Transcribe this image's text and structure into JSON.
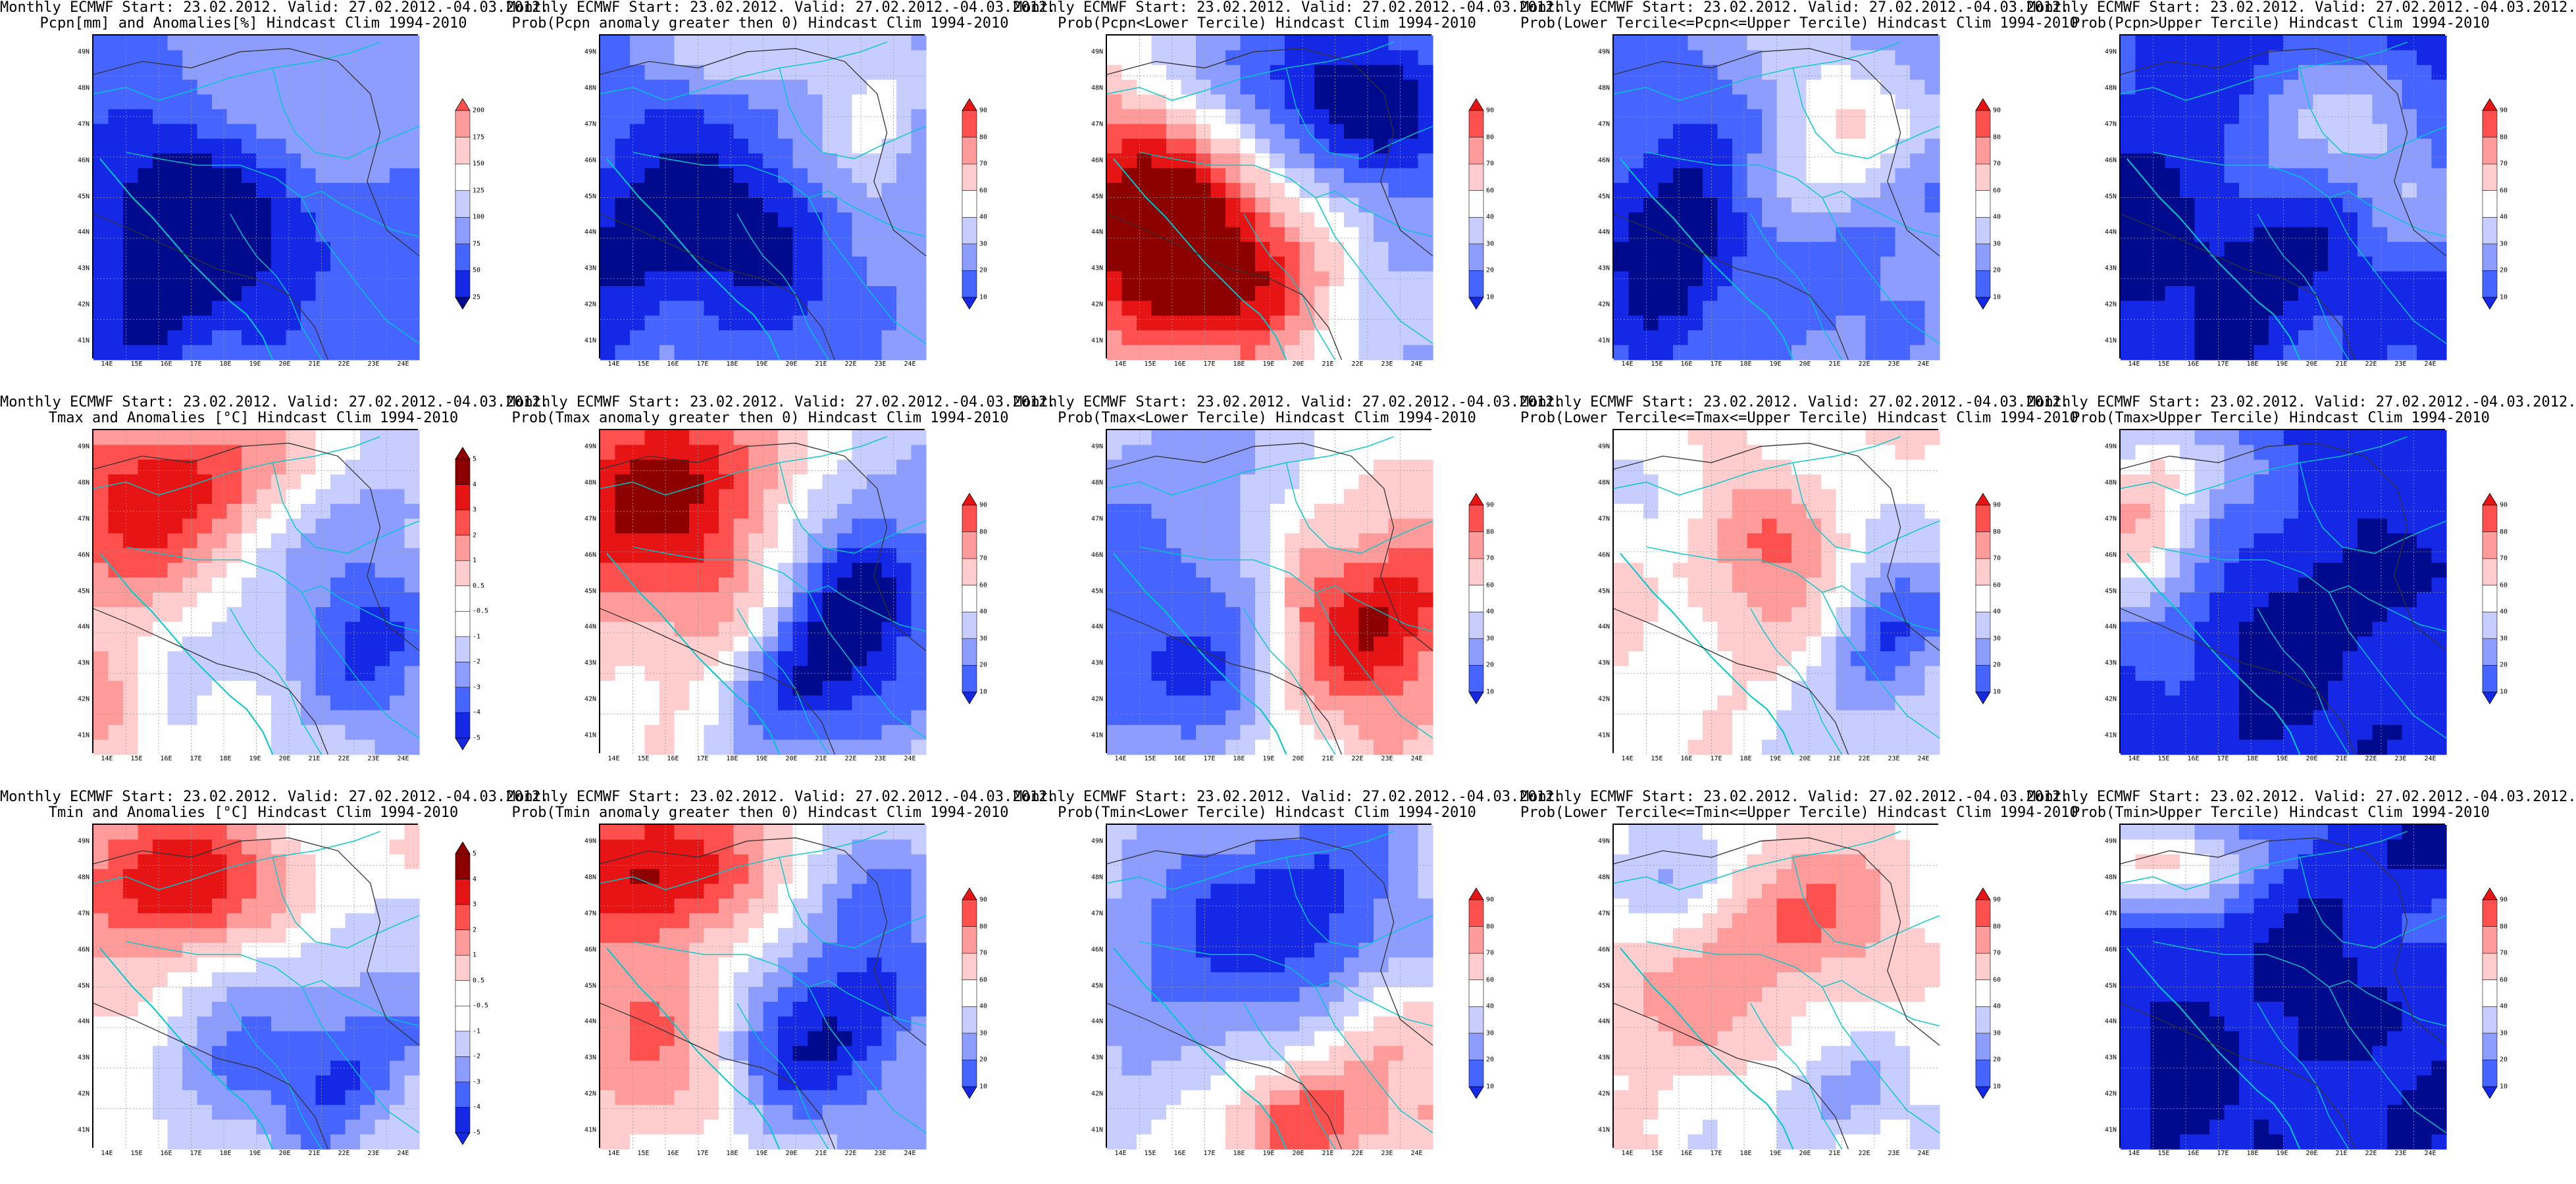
{
  "colors": {
    "blue": [
      "#000a8c",
      "#1428e6",
      "#4664ff",
      "#8c9dff",
      "#c8cdff"
    ],
    "white": "#ffffff",
    "red": [
      "#ffcdcd",
      "#ff9b9b",
      "#ff5050",
      "#e61414",
      "#8c0000"
    ],
    "coastline": "#00c8c8",
    "contour": "#333333",
    "grid": "#9a9a9a"
  },
  "axes": {
    "lat_labels": [
      "49N",
      "48N",
      "47N",
      "46N",
      "45N",
      "44N",
      "43N",
      "42N",
      "41N"
    ],
    "lon_labels": [
      "14E",
      "15E",
      "16E",
      "17E",
      "18E",
      "19E",
      "20E",
      "21E",
      "22E",
      "23E",
      "24E"
    ]
  },
  "colorbars": {
    "precip": [
      "25",
      "50",
      "75",
      "100",
      "125",
      "150",
      "175",
      "200"
    ],
    "prob": [
      "10",
      "20",
      "30",
      "40",
      "60",
      "70",
      "80",
      "90"
    ],
    "anom": [
      "-5",
      "-4",
      "-3",
      "-2",
      "-1",
      "-0.5",
      "0.5",
      "1",
      "2",
      "3",
      "4",
      "5"
    ]
  },
  "panels": [
    {
      "id": "p11",
      "line1": "Monthly ECMWF Start: 23.02.2012. Valid: 27.02.2012.-04.03.2012.",
      "line2": "Pcpn[mm] and Anomalies[%] Hindcast Clim 1994-2010",
      "colorbar": "precip",
      "scale": "precip",
      "pattern": "precip_anom"
    },
    {
      "id": "p12",
      "line1": "Monthly ECMWF Start: 23.02.2012. Valid: 27.02.2012.-04.03.2012.",
      "line2": "Prob(Pcpn anomaly greater then 0) Hindcast Clim 1994-2010",
      "colorbar": "prob",
      "scale": "prob",
      "pattern": "precip_prob0"
    },
    {
      "id": "p13",
      "line1": "Monthly ECMWF Start: 23.02.2012. Valid: 27.02.2012.-04.03.2012.",
      "line2": "Prob(Pcpn<Lower Tercile) Hindcast Clim 1994-2010",
      "colorbar": "prob",
      "scale": "prob",
      "pattern": "precip_lower"
    },
    {
      "id": "p14",
      "line1": "Monthly ECMWF Start: 23.02.2012. Valid: 27.02.2012.-04.03.2012.",
      "line2": "Prob(Lower Tercile<=Pcpn<=Upper Tercile) Hindcast Clim 1994-2010",
      "colorbar": "prob",
      "scale": "prob",
      "pattern": "precip_middle"
    },
    {
      "id": "p15",
      "line1": "Monthly ECMWF Start: 23.02.2012. Valid: 27.02.2012.-04.03.2012.",
      "line2": "Prob(Pcpn>Upper Tercile) Hindcast Clim 1994-2010",
      "colorbar": "prob",
      "scale": "prob",
      "pattern": "precip_upper"
    },
    {
      "id": "p21",
      "line1": "Monthly ECMWF Start: 23.02.2012. Valid: 27.02.2012.-04.03.2012.",
      "line2": "Tmax and Anomalies [°C] Hindcast Clim 1994-2010",
      "colorbar": "anom",
      "scale": "anom",
      "pattern": "tmax_anom"
    },
    {
      "id": "p22",
      "line1": "Monthly ECMWF Start: 23.02.2012. Valid: 27.02.2012.-04.03.2012.",
      "line2": "Prob(Tmax anomaly greater then 0) Hindcast Clim 1994-2010",
      "colorbar": "prob",
      "scale": "prob",
      "pattern": "tmax_prob0"
    },
    {
      "id": "p23",
      "line1": "Monthly ECMWF Start: 23.02.2012. Valid: 27.02.2012.-04.03.2012.",
      "line2": "Prob(Tmax<Lower Tercile) Hindcast Clim 1994-2010",
      "colorbar": "prob",
      "scale": "prob",
      "pattern": "tmax_lower"
    },
    {
      "id": "p24",
      "line1": "Monthly ECMWF Start: 23.02.2012. Valid: 27.02.2012.-04.03.2012.",
      "line2": "Prob(Lower Tercile<=Tmax<=Upper Tercile) Hindcast Clim 1994-2010",
      "colorbar": "prob",
      "scale": "prob",
      "pattern": "tmax_middle"
    },
    {
      "id": "p25",
      "line1": "Monthly ECMWF Start: 23.02.2012. Valid: 27.02.2012.-04.03.2012.",
      "line2": "Prob(Tmax>Upper Tercile) Hindcast Clim 1994-2010",
      "colorbar": "prob",
      "scale": "prob",
      "pattern": "tmax_upper"
    },
    {
      "id": "p31",
      "line1": "Monthly ECMWF Start: 23.02.2012. Valid: 27.02.2012.-04.03.2012.",
      "line2": "Tmin and Anomalies [°C] Hindcast Clim 1994-2010",
      "colorbar": "anom",
      "scale": "anom",
      "pattern": "tmin_anom"
    },
    {
      "id": "p32",
      "line1": "Monthly ECMWF Start: 23.02.2012. Valid: 27.02.2012.-04.03.2012.",
      "line2": "Prob(Tmin anomaly greater then 0) Hindcast Clim 1994-2010",
      "colorbar": "prob",
      "scale": "prob",
      "pattern": "tmin_prob0"
    },
    {
      "id": "p33",
      "line1": "Monthly ECMWF Start: 23.02.2012. Valid: 27.02.2012.-04.03.2012.",
      "line2": "Prob(Tmin<Lower Tercile) Hindcast Clim 1994-2010",
      "colorbar": "prob",
      "scale": "prob",
      "pattern": "tmin_lower"
    },
    {
      "id": "p34",
      "line1": "Monthly ECMWF Start: 23.02.2012. Valid: 27.02.2012.-04.03.2012.",
      "line2": "Prob(Lower Tercile<=Tmin<=Upper Tercile) Hindcast Clim 1994-2010",
      "colorbar": "prob",
      "scale": "prob",
      "pattern": "tmin_middle"
    },
    {
      "id": "p35",
      "line1": "Monthly ECMWF Start: 23.02.2012. Valid: 27.02.2012.-04.03.2012.",
      "line2": "Prob(Tmin>Upper Tercile) Hindcast Clim 1994-2010",
      "colorbar": "prob",
      "scale": "prob",
      "pattern": "tmin_upper"
    }
  ]
}
